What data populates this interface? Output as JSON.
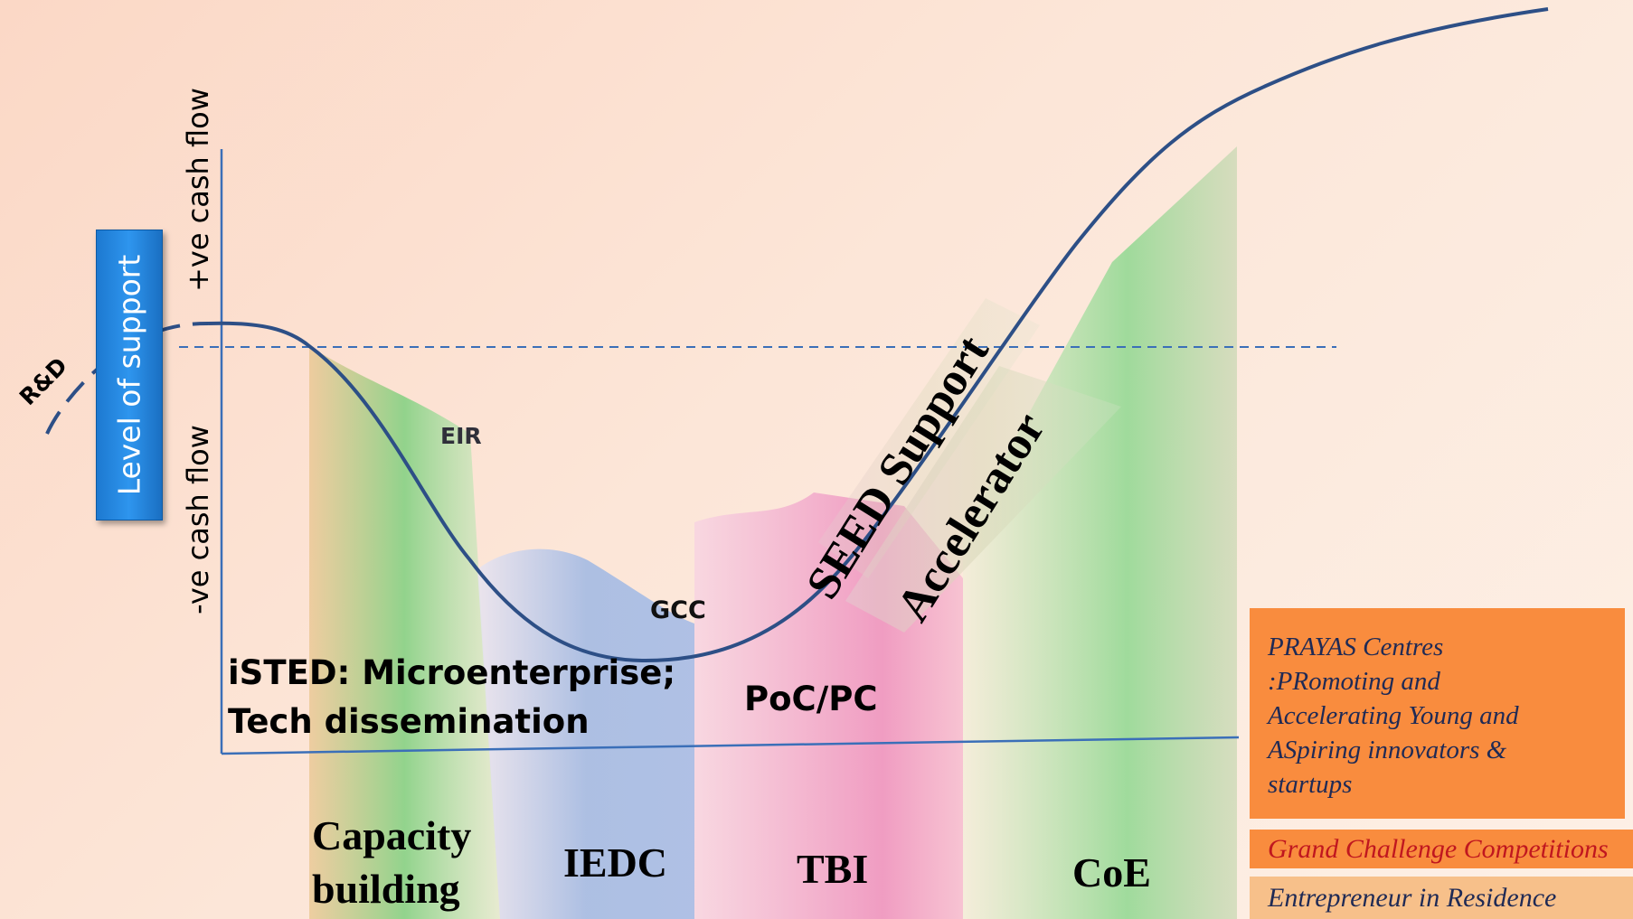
{
  "axis": {
    "positive_label": "+ve cash flow",
    "negative_label": "-ve cash flow"
  },
  "level_of_support": "Level of support",
  "rnd_label": "R&D",
  "curve_labels": {
    "eir": "EIR",
    "gcc": "GCC"
  },
  "stage_notes": {
    "isted_line1": "iSTED: Microenterprise;",
    "isted_line2": "Tech dissemination",
    "poc": "PoC/PC",
    "seed": "SEED Support",
    "accelerator": "Accelerator"
  },
  "stages": [
    {
      "label_line1": "Capacity",
      "label_line2": "building",
      "color": "#8fd18c"
    },
    {
      "label_line1": "IEDC",
      "label_line2": "",
      "color": "#a9bfe6"
    },
    {
      "label_line1": "TBI",
      "label_line2": "",
      "color": "#f2a6c8"
    },
    {
      "label_line1": "CoE",
      "label_line2": "",
      "color": "#8fd18c"
    }
  ],
  "boxes": {
    "prayas": "PRAYAS Centres\n:PRomoting and\nAccelerating Young and\nASpiring innovators &\nstartups",
    "grand_challenge": "Grand Challenge Competitions",
    "eir": "Entrepreneur in Residence"
  },
  "colors": {
    "curve": "#2d4f86",
    "axis": "#3b6fb8",
    "prayas_box": "#f98c3e",
    "eir_box": "#f7c08a"
  }
}
